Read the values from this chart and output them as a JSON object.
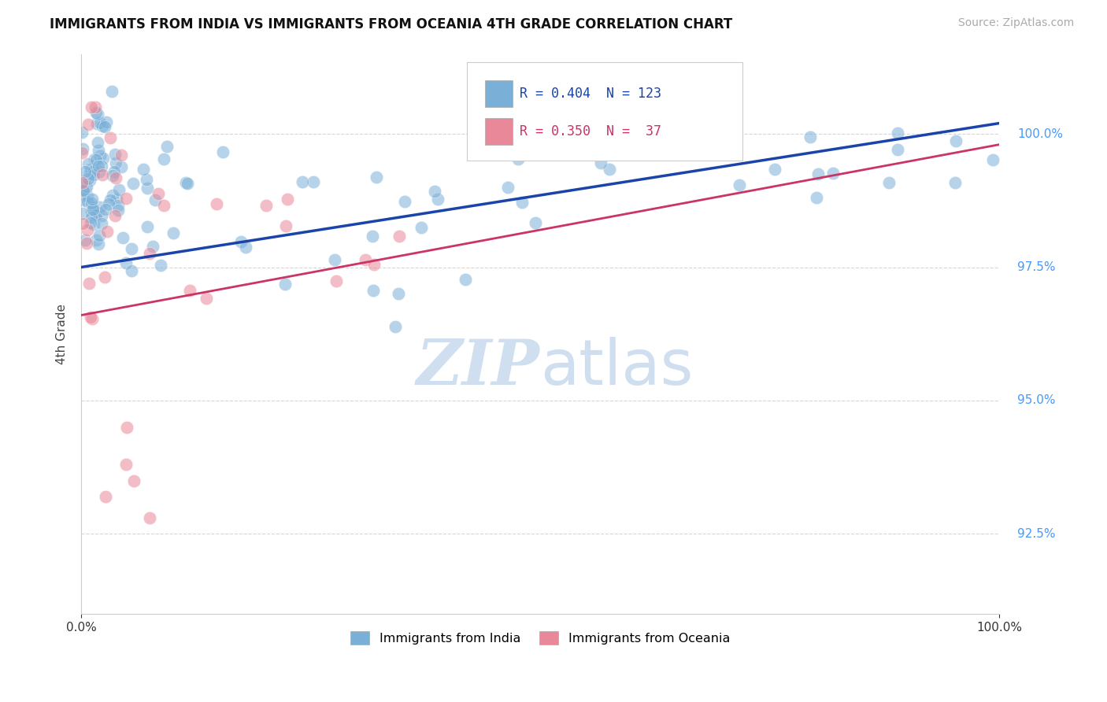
{
  "title": "IMMIGRANTS FROM INDIA VS IMMIGRANTS FROM OCEANIA 4TH GRADE CORRELATION CHART",
  "source_text": "Source: ZipAtlas.com",
  "ylabel": "4th Grade",
  "y_tick_values": [
    92.5,
    95.0,
    97.5,
    100.0
  ],
  "xlim": [
    0.0,
    100.0
  ],
  "ylim": [
    91.0,
    101.5
  ],
  "india_color": "#7ab0d8",
  "oceania_color": "#e88898",
  "india_line_color": "#1a44aa",
  "oceania_line_color": "#cc3366",
  "background_color": "#ffffff",
  "grid_color": "#cccccc",
  "title_fontsize": 12,
  "india_R": 0.404,
  "india_N": 123,
  "oceania_R": 0.35,
  "oceania_N": 37,
  "watermark_color": "#d0dff0",
  "ytick_color": "#4499ff"
}
